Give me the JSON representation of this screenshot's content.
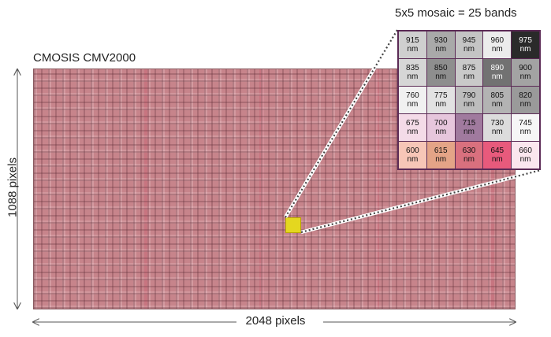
{
  "sensor": {
    "title": "CMOSIS CMV2000"
  },
  "dimensions": {
    "width_label": "2048 pixels",
    "height_label": "1088 pixels"
  },
  "mosaic": {
    "title": "5x5 mosaic = 25 bands",
    "unit": "nm",
    "cells": [
      {
        "value": "915",
        "color": "#cfcfcf",
        "text": "#111111"
      },
      {
        "value": "930",
        "color": "#a9a9a9",
        "text": "#111111"
      },
      {
        "value": "945",
        "color": "#c4c4c4",
        "text": "#111111"
      },
      {
        "value": "960",
        "color": "#ececec",
        "text": "#111111"
      },
      {
        "value": "975",
        "color": "#2a2a2a",
        "text": "#ffffff"
      },
      {
        "value": "835",
        "color": "#d6d6d6",
        "text": "#111111"
      },
      {
        "value": "850",
        "color": "#8e8e8e",
        "text": "#111111"
      },
      {
        "value": "875",
        "color": "#c9c9c9",
        "text": "#111111"
      },
      {
        "value": "890",
        "color": "#727272",
        "text": "#ffffff"
      },
      {
        "value": "900",
        "color": "#a3a3a3",
        "text": "#111111"
      },
      {
        "value": "760",
        "color": "#f1f1f1",
        "text": "#111111"
      },
      {
        "value": "775",
        "color": "#e2e2e2",
        "text": "#111111"
      },
      {
        "value": "790",
        "color": "#bdbdbd",
        "text": "#111111"
      },
      {
        "value": "805",
        "color": "#b3b3b3",
        "text": "#111111"
      },
      {
        "value": "820",
        "color": "#9a9a9a",
        "text": "#111111"
      },
      {
        "value": "675",
        "color": "#f4dbe8",
        "text": "#111111"
      },
      {
        "value": "700",
        "color": "#e6c6dc",
        "text": "#111111"
      },
      {
        "value": "715",
        "color": "#a07a9e",
        "text": "#111111"
      },
      {
        "value": "730",
        "color": "#dcdcdc",
        "text": "#111111"
      },
      {
        "value": "745",
        "color": "#f6f6f6",
        "text": "#111111"
      },
      {
        "value": "600",
        "color": "#f7c6b7",
        "text": "#111111"
      },
      {
        "value": "615",
        "color": "#e4a487",
        "text": "#111111"
      },
      {
        "value": "630",
        "color": "#d9707e",
        "text": "#111111"
      },
      {
        "value": "645",
        "color": "#e85a7c",
        "text": "#111111"
      },
      {
        "value": "660",
        "color": "#fbe6ee",
        "text": "#111111"
      }
    ]
  }
}
